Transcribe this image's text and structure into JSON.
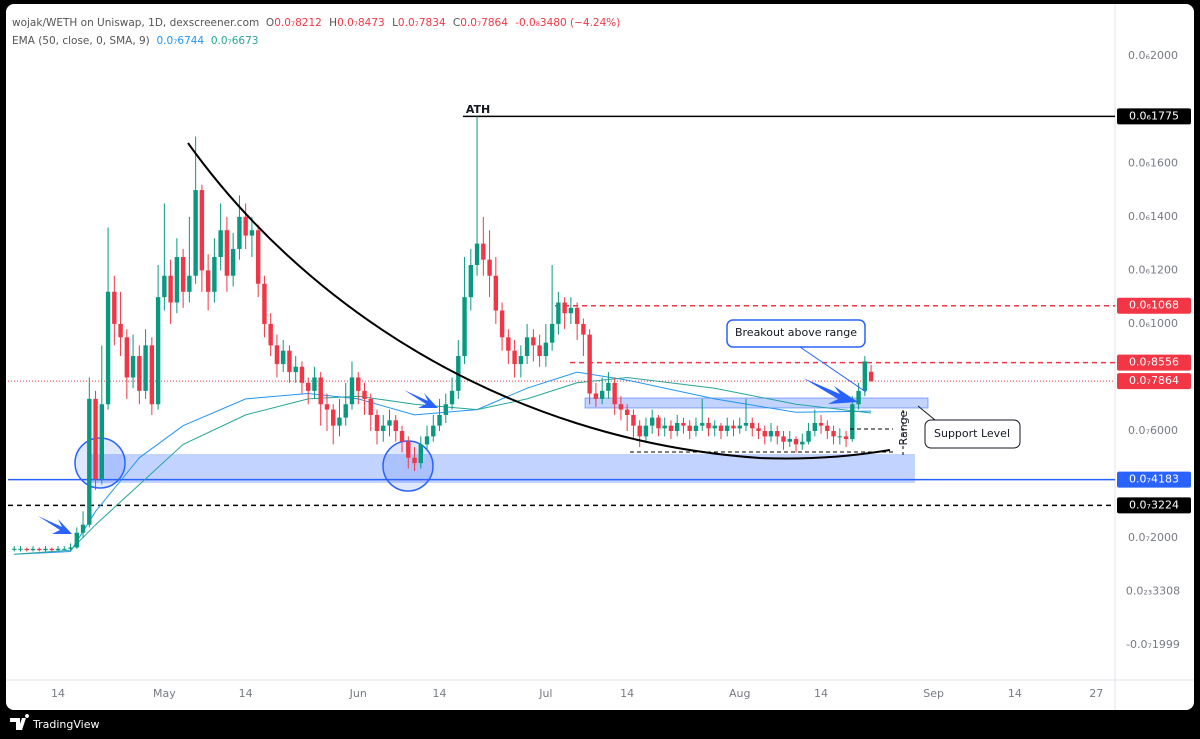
{
  "chart_data": {
    "type": "candlestick",
    "title": "wojak/WETH on Uniswap, 1D, dexscreener.com",
    "ohlc_legend": [
      {
        "label": "O",
        "value": "0.0₇8212"
      },
      {
        "label": "H",
        "value": "0.0₇8473"
      },
      {
        "label": "L",
        "value": "0.0₇7834"
      },
      {
        "label": "C",
        "value": "0.0₇7864"
      }
    ],
    "change": "-0.0₈3480 (−4.24%)",
    "indicator": "EMA (50, close, 0, SMA, 9)",
    "indicator_values": [
      {
        "value": "0.0₇6744",
        "color": "#2196f3"
      },
      {
        "value": "0.0₇6673",
        "color": "#26a69a"
      }
    ],
    "up_color": "#089981",
    "down_color": "#f23645",
    "x": [
      "04-07",
      "04-08",
      "04-09",
      "04-10",
      "04-11",
      "04-12",
      "04-13",
      "04-14",
      "04-15",
      "04-16",
      "04-17",
      "04-18",
      "04-19",
      "04-20",
      "04-21",
      "04-22",
      "04-23",
      "04-24",
      "04-25",
      "04-26",
      "04-27",
      "04-28",
      "04-29",
      "04-30",
      "05-01",
      "05-02",
      "05-03",
      "05-04",
      "05-05",
      "05-06",
      "05-07",
      "05-08",
      "05-09",
      "05-10",
      "05-11",
      "05-12",
      "05-13",
      "05-14",
      "05-15",
      "05-16",
      "05-17",
      "05-18",
      "05-19",
      "05-20",
      "05-21",
      "05-22",
      "05-23",
      "05-24",
      "05-25",
      "05-26",
      "05-27",
      "05-28",
      "05-29",
      "05-30",
      "05-31",
      "06-01",
      "06-02",
      "06-03",
      "06-04",
      "06-05",
      "06-06",
      "06-07",
      "06-08",
      "06-09",
      "06-10",
      "06-11",
      "06-12",
      "06-13",
      "06-14",
      "06-15",
      "06-16",
      "06-17",
      "06-18",
      "06-19",
      "06-20",
      "06-21",
      "06-22",
      "06-23",
      "06-24",
      "06-25",
      "06-26",
      "06-27",
      "06-28",
      "06-29",
      "06-30",
      "07-01",
      "07-02",
      "07-03",
      "07-04",
      "07-05",
      "07-06",
      "07-07",
      "07-08",
      "07-09",
      "07-10",
      "07-11",
      "07-12",
      "07-13",
      "07-14",
      "07-15",
      "07-16",
      "07-17",
      "07-18",
      "07-19",
      "07-20",
      "07-21",
      "07-22",
      "07-23",
      "07-24",
      "07-25",
      "07-26",
      "07-27",
      "07-28",
      "07-29",
      "07-30",
      "07-31",
      "08-01",
      "08-02",
      "08-03",
      "08-04",
      "08-05",
      "08-06",
      "08-07",
      "08-08",
      "08-09",
      "08-10",
      "08-11",
      "08-12",
      "08-13",
      "08-14",
      "08-15",
      "08-16",
      "08-17",
      "08-18",
      "08-19",
      "08-20",
      "08-21",
      "08-22"
    ],
    "open": [
      1.6e-08,
      1.6e-08,
      1.6e-08,
      1.55e-08,
      1.6e-08,
      1.55e-08,
      1.6e-08,
      1.55e-08,
      1.6e-08,
      1.6e-08,
      1.65e-08,
      2.2e-08,
      2.5e-08,
      7.2e-08,
      4.2e-08,
      7e-08,
      1.12e-07,
      1e-07,
      9.5e-08,
      8e-08,
      8.8e-08,
      7.5e-08,
      9.2e-08,
      7e-08,
      1.1e-07,
      1.18e-07,
      1.08e-07,
      1.25e-07,
      1.12e-07,
      1.18e-07,
      1.5e-07,
      1.2e-07,
      1.12e-07,
      1.25e-07,
      1.35e-07,
      1.18e-07,
      1.28e-07,
      1.4e-07,
      1.33e-07,
      1.35e-07,
      1.15e-07,
      1e-07,
      9.2e-08,
      8.5e-08,
      9e-08,
      8.2e-08,
      8.4e-08,
      7.8e-08,
      7.5e-08,
      8e-08,
      7e-08,
      6.8e-08,
      6.2e-08,
      6.5e-08,
      7e-08,
      8e-08,
      7.5e-08,
      7.2e-08,
      6.6e-08,
      6e-08,
      6.2e-08,
      6.4e-08,
      6e-08,
      5.6e-08,
      5e-08,
      4.8e-08,
      5.5e-08,
      5.8e-08,
      6.2e-08,
      6.6e-08,
      7e-08,
      7.5e-08,
      8.8e-08,
      1.1e-07,
      1.22e-07,
      1.3e-07,
      1.24e-07,
      1.18e-07,
      1.05e-07,
      9.5e-08,
      9e-08,
      8.5e-08,
      8.8e-08,
      9.5e-08,
      9.2e-08,
      8.8e-08,
      9.3e-08,
      1e-07,
      1.08e-07,
      1.04e-07,
      1.06e-07,
      1e-07,
      9.6e-08,
      7.4e-08,
      7.2e-08,
      7.5e-08,
      7.8e-08,
      7e-08,
      6.8e-08,
      6.6e-08,
      6.2e-08,
      5.8e-08,
      6.2e-08,
      6.5e-08,
      6.1e-08,
      6.2e-08,
      6e-08,
      6.3e-08,
      6.2e-08,
      6e-08,
      6.2e-08,
      6.3e-08,
      6.1e-08,
      6.2e-08,
      6e-08,
      6.2e-08,
      6.1e-08,
      6.2e-08,
      6.3e-08,
      6.1e-08,
      6e-08,
      5.8e-08,
      6e-08,
      5.8e-08,
      5.6e-08,
      5.7e-08,
      5.5e-08,
      5.6e-08,
      6e-08,
      6.3e-08,
      6.2e-08,
      6e-08,
      5.8e-08,
      5.8e-08,
      5.7e-08,
      7e-08,
      7.5e-08,
      8.212e-08
    ],
    "high": [
      1.7e-08,
      1.7e-08,
      1.65e-08,
      1.7e-08,
      1.65e-08,
      1.7e-08,
      1.65e-08,
      1.7e-08,
      1.7e-08,
      1.8e-08,
      2.4e-08,
      3e-08,
      8e-08,
      7.5e-08,
      9.2e-08,
      1.36e-07,
      1.18e-07,
      1.12e-07,
      9.8e-08,
      9.6e-08,
      9.2e-08,
      9.8e-08,
      9.5e-08,
      1.22e-07,
      1.45e-07,
      1.24e-07,
      1.32e-07,
      1.28e-07,
      1.4e-07,
      1.7e-07,
      1.52e-07,
      1.26e-07,
      1.32e-07,
      1.45e-07,
      1.4e-07,
      1.34e-07,
      1.48e-07,
      1.45e-07,
      1.4e-07,
      1.37e-07,
      1.18e-07,
      1.04e-07,
      9.6e-08,
      9.4e-08,
      9.2e-08,
      8.8e-08,
      8.6e-08,
      8e-08,
      8.4e-08,
      8.2e-08,
      7.4e-08,
      7e-08,
      7.2e-08,
      7.8e-08,
      8.6e-08,
      8.2e-08,
      7.8e-08,
      7.4e-08,
      6.8e-08,
      6.6e-08,
      6.8e-08,
      6.6e-08,
      6.2e-08,
      5.8e-08,
      5.4e-08,
      5.8e-08,
      6.2e-08,
      6.6e-08,
      7.2e-08,
      7.4e-08,
      8e-08,
      9.4e-08,
      1.25e-07,
      1.28e-07,
      1.775e-07,
      1.4e-07,
      1.35e-07,
      1.25e-07,
      1.08e-07,
      9.8e-08,
      9.4e-08,
      9.2e-08,
      1e-07,
      9.8e-08,
      9.6e-08,
      1e-07,
      1.22e-07,
      1.12e-07,
      1.1e-07,
      1.1e-07,
      1.08e-07,
      1.02e-07,
      9.8e-08,
      7.8e-08,
      8e-08,
      8.2e-08,
      8e-08,
      7.3e-08,
      7e-08,
      6.8e-08,
      6.4e-08,
      6.5e-08,
      6.8e-08,
      6.6e-08,
      6.5e-08,
      6.4e-08,
      6.6e-08,
      6.5e-08,
      6.4e-08,
      6.5e-08,
      7.2e-08,
      6.5e-08,
      6.4e-08,
      6.3e-08,
      6.5e-08,
      6.4e-08,
      6.5e-08,
      7.2e-08,
      6.5e-08,
      6.3e-08,
      6.2e-08,
      6.3e-08,
      6.2e-08,
      6e-08,
      6e-08,
      5.8e-08,
      5.9e-08,
      6.3e-08,
      6.8e-08,
      6.6e-08,
      6.4e-08,
      6.2e-08,
      6.1e-08,
      6e-08,
      7.3e-08,
      7.8e-08,
      8.8e-08,
      8.473e-08
    ],
    "low": [
      1.5e-08,
      1.5e-08,
      1.5e-08,
      1.5e-08,
      1.5e-08,
      1.5e-08,
      1.5e-08,
      1.5e-08,
      1.55e-08,
      1.55e-08,
      1.6e-08,
      2e-08,
      2.4e-08,
      3.8e-08,
      4e-08,
      6.8e-08,
      9.2e-08,
      8.8e-08,
      7.2e-08,
      7.6e-08,
      7e-08,
      7.2e-08,
      6.6e-08,
      6.8e-08,
      1.05e-07,
      1e-07,
      1.04e-07,
      1.06e-07,
      1.08e-07,
      1.15e-07,
      1.12e-07,
      1.05e-07,
      1.08e-07,
      1.2e-07,
      1.12e-07,
      1.14e-07,
      1.24e-07,
      1.28e-07,
      1.25e-07,
      1.1e-07,
      9.5e-08,
      8.8e-08,
      8e-08,
      8.2e-08,
      7.8e-08,
      7.8e-08,
      7.4e-08,
      7e-08,
      7.2e-08,
      6.2e-08,
      6e-08,
      5.5e-08,
      5.8e-08,
      6.2e-08,
      6.8e-08,
      7e-08,
      6.6e-08,
      6e-08,
      5.5e-08,
      5.6e-08,
      5.8e-08,
      5.6e-08,
      5.2e-08,
      4.6e-08,
      4.5e-08,
      4.6e-08,
      5.3e-08,
      5.6e-08,
      6e-08,
      6.3e-08,
      6.8e-08,
      7.2e-08,
      8.5e-08,
      1.05e-07,
      1.18e-07,
      1.18e-07,
      1.1e-07,
      1e-07,
      9e-08,
      8.5e-08,
      8e-08,
      8e-08,
      8.5e-08,
      8.6e-08,
      8.4e-08,
      8.4e-08,
      9e-08,
      9.6e-08,
      9.8e-08,
      1e-07,
      9.4e-08,
      8.8e-08,
      7e-08,
      6.9e-08,
      7e-08,
      7.2e-08,
      6.6e-08,
      6.4e-08,
      6e-08,
      5.7e-08,
      5.4e-08,
      5.6e-08,
      5.9e-08,
      5.8e-08,
      5.8e-08,
      5.7e-08,
      5.8e-08,
      5.9e-08,
      5.7e-08,
      5.8e-08,
      6e-08,
      5.8e-08,
      5.8e-08,
      5.7e-08,
      5.8e-08,
      5.8e-08,
      5.9e-08,
      6e-08,
      5.8e-08,
      5.7e-08,
      5.5e-08,
      5.6e-08,
      5.5e-08,
      5.3e-08,
      5.4e-08,
      5.2e-08,
      5.3e-08,
      5.5e-08,
      5.8e-08,
      5.9e-08,
      5.7e-08,
      5.5e-08,
      5.5e-08,
      5.4e-08,
      5.6e-08,
      6.8e-08,
      7.3e-08,
      7.834e-08
    ],
    "close": [
      1.6e-08,
      1.6e-08,
      1.55e-08,
      1.6e-08,
      1.55e-08,
      1.6e-08,
      1.55e-08,
      1.6e-08,
      1.6e-08,
      1.65e-08,
      2.2e-08,
      2.5e-08,
      7.2e-08,
      4.2e-08,
      7e-08,
      1.12e-07,
      1e-07,
      9.5e-08,
      8e-08,
      8.8e-08,
      7.5e-08,
      9.2e-08,
      7e-08,
      1.1e-07,
      1.18e-07,
      1.08e-07,
      1.25e-07,
      1.12e-07,
      1.18e-07,
      1.5e-07,
      1.2e-07,
      1.12e-07,
      1.25e-07,
      1.35e-07,
      1.18e-07,
      1.28e-07,
      1.4e-07,
      1.33e-07,
      1.35e-07,
      1.15e-07,
      1e-07,
      9.2e-08,
      8.5e-08,
      9e-08,
      8.2e-08,
      8.4e-08,
      7.8e-08,
      7.5e-08,
      8e-08,
      7e-08,
      6.8e-08,
      6.2e-08,
      6.5e-08,
      7e-08,
      8e-08,
      7.5e-08,
      7.2e-08,
      6.6e-08,
      6e-08,
      6.2e-08,
      6.4e-08,
      6e-08,
      5.6e-08,
      5e-08,
      4.8e-08,
      5.5e-08,
      5.8e-08,
      6.2e-08,
      6.6e-08,
      7e-08,
      7.5e-08,
      8.8e-08,
      1.1e-07,
      1.22e-07,
      1.3e-07,
      1.24e-07,
      1.18e-07,
      1.05e-07,
      9.5e-08,
      9e-08,
      8.5e-08,
      8.8e-08,
      9.5e-08,
      9.2e-08,
      8.8e-08,
      9.3e-08,
      1e-07,
      1.08e-07,
      1.04e-07,
      1.06e-07,
      1e-07,
      9.6e-08,
      7.4e-08,
      7.2e-08,
      7.5e-08,
      7.8e-08,
      7e-08,
      6.8e-08,
      6.6e-08,
      6.2e-08,
      5.8e-08,
      6.2e-08,
      6.5e-08,
      6.1e-08,
      6.2e-08,
      6e-08,
      6.3e-08,
      6.2e-08,
      6e-08,
      6.2e-08,
      6.3e-08,
      6.1e-08,
      6.2e-08,
      6e-08,
      6.2e-08,
      6.1e-08,
      6.2e-08,
      6.3e-08,
      6.1e-08,
      6e-08,
      5.8e-08,
      6e-08,
      5.8e-08,
      5.6e-08,
      5.7e-08,
      5.5e-08,
      5.6e-08,
      6e-08,
      6.3e-08,
      6.2e-08,
      6e-08,
      5.8e-08,
      5.8e-08,
      5.7e-08,
      7e-08,
      7.5e-08,
      8.6e-08,
      7.864e-08
    ],
    "lines": [
      {
        "color": "#2196f3",
        "x": [
          "04-07",
          "04-16",
          "04-20",
          "04-27",
          "05-04",
          "05-14",
          "05-24",
          "06-01",
          "06-10",
          "06-20",
          "06-28",
          "07-06",
          "07-14",
          "07-28",
          "08-10",
          "08-22"
        ],
        "values": [
          1.4e-08,
          1.5e-08,
          3e-08,
          5e-08,
          6.2e-08,
          7.2e-08,
          7.4e-08,
          7.2e-08,
          6.6e-08,
          6.8e-08,
          7.6e-08,
          8.2e-08,
          7.9e-08,
          7.2e-08,
          6.7e-08,
          6.744e-08
        ]
      },
      {
        "color": "#26a69a",
        "x": [
          "04-07",
          "04-16",
          "04-20",
          "04-27",
          "05-04",
          "05-14",
          "05-24",
          "06-01",
          "06-10",
          "06-20",
          "06-28",
          "07-06",
          "07-14",
          "07-28",
          "08-10",
          "08-22"
        ],
        "values": [
          1.4e-08,
          1.55e-08,
          2.5e-08,
          4e-08,
          5.5e-08,
          6.6e-08,
          7.2e-08,
          7.3e-08,
          7e-08,
          6.8e-08,
          7.2e-08,
          7.8e-08,
          8e-08,
          7.6e-08,
          7e-08,
          6.673e-08
        ]
      }
    ],
    "xlim": [
      "04-06",
      "09-30"
    ],
    "xticks": [
      {
        "value": "04-14",
        "label": "14"
      },
      {
        "value": "05-01",
        "label": "May"
      },
      {
        "value": "05-14",
        "label": "14"
      },
      {
        "value": "06-01",
        "label": "Jun"
      },
      {
        "value": "06-14",
        "label": "14"
      },
      {
        "value": "07-01",
        "label": "Jul"
      },
      {
        "value": "07-14",
        "label": "14"
      },
      {
        "value": "08-01",
        "label": "Aug"
      },
      {
        "value": "08-14",
        "label": "14"
      },
      {
        "value": "09-01",
        "label": "Sep"
      },
      {
        "value": "09-14",
        "label": "14"
      },
      {
        "value": "09-27",
        "label": "27"
      }
    ],
    "ylim": [
      -3.3e-08,
      2.18e-07
    ],
    "yticks": [
      {
        "value": 2e-07,
        "label": "0.0₆2000"
      },
      {
        "value": 1.6e-07,
        "label": "0.0₆1600"
      },
      {
        "value": 1.4e-07,
        "label": "0.0₆1400"
      },
      {
        "value": 1.2e-07,
        "label": "0.0₆1200"
      },
      {
        "value": 1e-07,
        "label": "0.0₆1000"
      },
      {
        "value": 6e-08,
        "label": "0.0₇6000"
      },
      {
        "value": 2e-08,
        "label": "0.0₇2000"
      },
      {
        "value": 3.308e-24,
        "label": "0.0₂₃3308"
      },
      {
        "value": -1.999e-08,
        "label": "-0.0₇1999"
      }
    ],
    "levels": [
      {
        "value": 1.775e-07,
        "label": "0.0₆1775",
        "color": "#000000",
        "style": "solid"
      },
      {
        "value": 1.068e-07,
        "label": "0.0₆1068",
        "color": "#f23645",
        "style": "dashed"
      },
      {
        "value": 8.556e-08,
        "label": "0.0₇8556",
        "color": "#f23645",
        "style": "dashed"
      },
      {
        "value": 7.864e-08,
        "label": "0.0₇7864",
        "color": "#f23645",
        "style": "dotted"
      },
      {
        "value": 4.183e-08,
        "label": "0.0₇4183",
        "color": "#2962ff",
        "style": "solid"
      },
      {
        "value": 3.224e-08,
        "label": "0.0₇3224",
        "color": "#000000",
        "style": "dashed"
      }
    ],
    "annotations": [
      "ATH",
      "Breakout above range",
      "Range",
      "Support Level"
    ],
    "footer": "TradingView"
  }
}
